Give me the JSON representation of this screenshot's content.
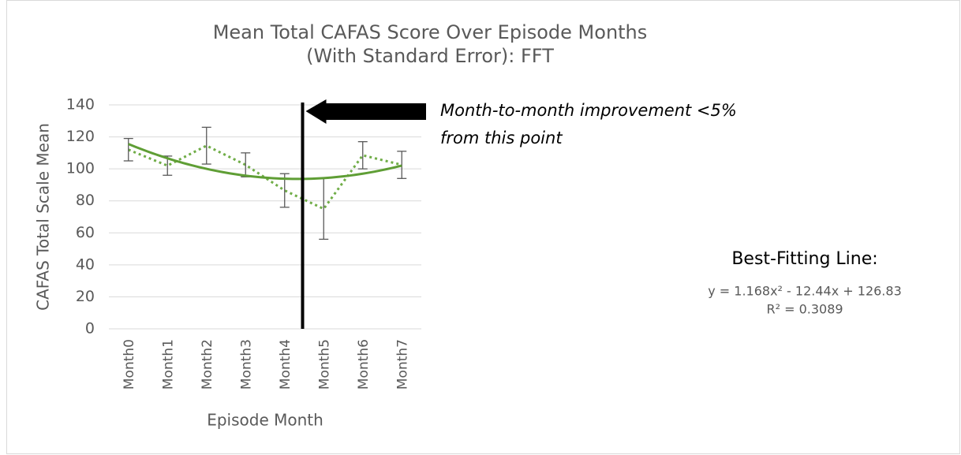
{
  "chart_data": {
    "type": "line",
    "title": [
      "Mean Total CAFAS Score Over Episode Months",
      "(With Standard Error): FFT"
    ],
    "x_label": "Episode Month",
    "y_label": "CAFAS Total Scale Mean",
    "categories": [
      "Month0",
      "Month1",
      "Month2",
      "Month3",
      "Month4",
      "Month5",
      "Month6",
      "Month7"
    ],
    "series": [
      {
        "color": "#70ad47",
        "values": [
          112,
          102,
          114.5,
          102.5,
          86.5,
          75,
          108.5,
          102.5
        ],
        "errors": [
          7,
          6,
          11.5,
          7.5,
          10.5,
          19,
          8.5,
          8.5
        ]
      }
    ],
    "trendline": {
      "color": "#5f9e35",
      "label": "Best-Fitting Line:",
      "equation": "y = 1.168x² - 12.44x + 126.83",
      "r2": "R² = 0.3089",
      "coefficients": [
        1.168,
        -12.44,
        126.83
      ]
    },
    "annotation": [
      "Month-to-month improvement <5%",
      "from this point"
    ],
    "ylim": [
      0,
      140
    ],
    "yticks": [
      0,
      20,
      40,
      60,
      80,
      100,
      120,
      140
    ],
    "grid": true
  }
}
